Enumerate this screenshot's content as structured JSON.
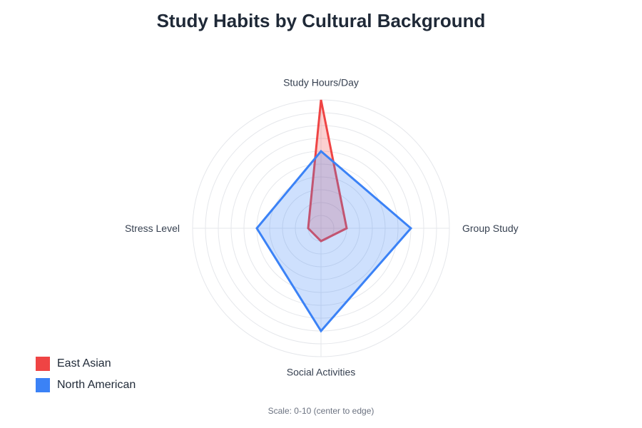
{
  "chart_data": {
    "type": "radar",
    "title": "Study Habits by Cultural Background",
    "axes": [
      "Study Hours/Day",
      "Group Study",
      "Social Activities",
      "Stress Level"
    ],
    "scale": {
      "min": 0,
      "max": 10
    },
    "grid": true,
    "legend_position": "bottom-left",
    "series": [
      {
        "name": "East Asian",
        "values": [
          10,
          2,
          1,
          1
        ],
        "color": "#ef4444"
      },
      {
        "name": "North American",
        "values": [
          6,
          7,
          8,
          5
        ],
        "color": "#3b82f6"
      }
    ],
    "note": "Scale: 0-10 (center to edge)"
  }
}
